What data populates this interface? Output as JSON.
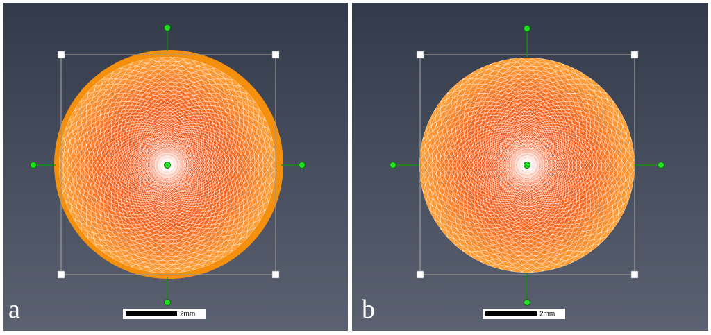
{
  "panels": [
    {
      "label": "a",
      "scale_bar": "2mm"
    },
    {
      "label": "b",
      "scale_bar": "2mm"
    }
  ]
}
